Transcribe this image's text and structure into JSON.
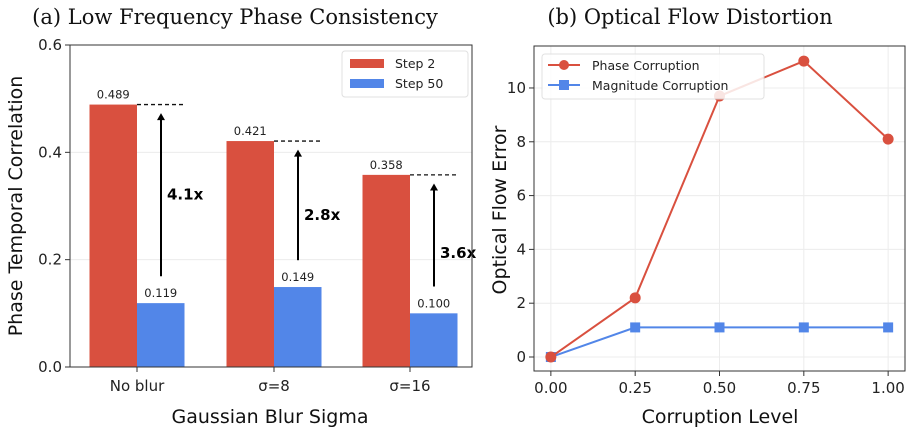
{
  "chart_data": [
    {
      "type": "bar",
      "title": "(a) Low Frequency Phase Consistency",
      "xlabel": "Gaussian Blur Sigma",
      "ylabel": "Phase Temporal Correlation",
      "categories": [
        "No blur",
        "σ=8",
        "σ=16"
      ],
      "series": [
        {
          "name": "Step 2",
          "values": [
            0.489,
            0.421,
            0.358
          ],
          "color": "#d9503f",
          "labels": [
            "0.489",
            "0.421",
            "0.358"
          ]
        },
        {
          "name": "Step 50",
          "values": [
            0.119,
            0.149,
            0.1
          ],
          "color": "#5286e8",
          "labels": [
            "0.119",
            "0.149",
            "0.100"
          ]
        }
      ],
      "annotations": [
        "4.1x",
        "2.8x",
        "3.6x"
      ],
      "ylim": [
        0,
        0.6
      ],
      "yticks": [
        "0.0",
        "0.2",
        "0.4",
        "0.6"
      ],
      "grid": true,
      "legend": "top-right"
    },
    {
      "type": "line",
      "title": "(b) Optical Flow Distortion",
      "xlabel": "Corruption Level",
      "ylabel": "Optical Flow Error",
      "x": [
        0.0,
        0.25,
        0.5,
        0.75,
        1.0
      ],
      "xticks": [
        "0.00",
        "0.25",
        "0.50",
        "0.75",
        "1.00"
      ],
      "yticks": [
        "0",
        "2",
        "4",
        "6",
        "8",
        "10"
      ],
      "series": [
        {
          "name": "Phase Corruption",
          "values": [
            0.0,
            2.2,
            9.7,
            11.0,
            8.1
          ],
          "color": "#d9503f",
          "marker": "circle"
        },
        {
          "name": "Magnitude Corruption",
          "values": [
            0.0,
            1.1,
            1.1,
            1.1,
            1.1
          ],
          "color": "#5286e8",
          "marker": "square"
        }
      ],
      "xlim": [
        -0.05,
        1.05
      ],
      "ylim": [
        -0.52,
        11.56
      ],
      "grid": true,
      "legend": "top-left"
    }
  ]
}
